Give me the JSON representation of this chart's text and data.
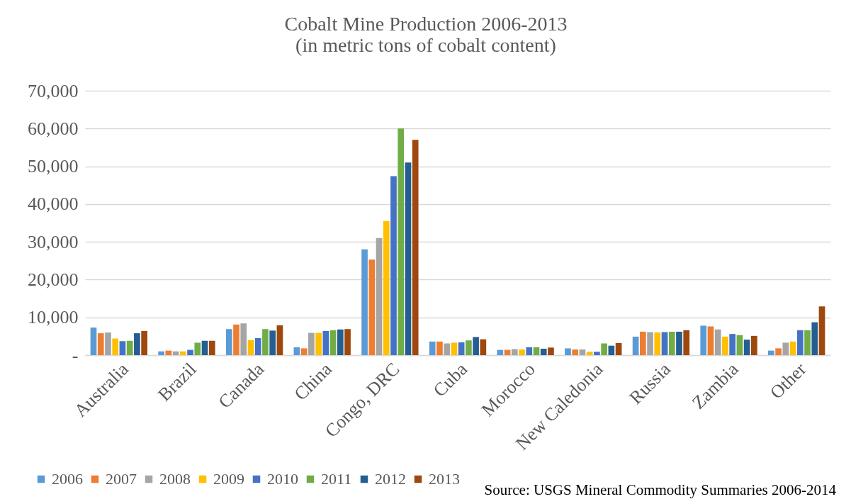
{
  "chart_data": {
    "type": "bar",
    "title": "Cobalt Mine Production 2006-2013",
    "subtitle": "(in metric tons of cobalt content)",
    "categories": [
      "Australia",
      "Brazil",
      "Canada",
      "China",
      "Congo, DRC",
      "Cuba",
      "Morocco",
      "New Caledonia",
      "Russia",
      "Zambia",
      "Other"
    ],
    "series": [
      {
        "name": "2006",
        "color": "#5b9bd5",
        "values": [
          7300,
          1000,
          6900,
          2100,
          28000,
          3600,
          1400,
          1800,
          4900,
          7800,
          1200
        ]
      },
      {
        "name": "2007",
        "color": "#ed7d31",
        "values": [
          5800,
          1200,
          8100,
          1800,
          25300,
          3600,
          1400,
          1500,
          6200,
          7600,
          1800
        ]
      },
      {
        "name": "2008",
        "color": "#a5a5a5",
        "values": [
          6000,
          1000,
          8400,
          5900,
          31000,
          3100,
          1600,
          1500,
          6100,
          6800,
          3300
        ]
      },
      {
        "name": "2009",
        "color": "#ffc000",
        "values": [
          4400,
          1000,
          4000,
          5900,
          35500,
          3300,
          1500,
          900,
          6000,
          4900,
          3600
        ]
      },
      {
        "name": "2010",
        "color": "#4472c4",
        "values": [
          3700,
          1400,
          4500,
          6400,
          47400,
          3400,
          2100,
          900,
          6100,
          5600,
          6600
        ]
      },
      {
        "name": "2011",
        "color": "#70ad47",
        "values": [
          3800,
          3300,
          6900,
          6600,
          60000,
          3900,
          2100,
          3100,
          6200,
          5300,
          6600
        ]
      },
      {
        "name": "2012",
        "color": "#255e91",
        "values": [
          5800,
          3800,
          6500,
          6800,
          51000,
          4800,
          1700,
          2500,
          6200,
          4100,
          8700
        ]
      },
      {
        "name": "2013",
        "color": "#9e480e",
        "values": [
          6400,
          3800,
          7900,
          6900,
          57000,
          4200,
          2000,
          3200,
          6600,
          5100,
          12900
        ]
      }
    ],
    "ylim": [
      0,
      70000
    ],
    "yticks": [
      {
        "value": 0,
        "label": "-"
      },
      {
        "value": 10000,
        "label": "10,000"
      },
      {
        "value": 20000,
        "label": "20,000"
      },
      {
        "value": 30000,
        "label": "30,000"
      },
      {
        "value": 40000,
        "label": "40,000"
      },
      {
        "value": 50000,
        "label": "50,000"
      },
      {
        "value": 60000,
        "label": "60,000"
      },
      {
        "value": 70000,
        "label": "70,000"
      }
    ],
    "grid": "y",
    "legend": "bottom",
    "annotations": [
      "Source:  USGS Mineral Commodity Summaries 2006-2014"
    ]
  }
}
